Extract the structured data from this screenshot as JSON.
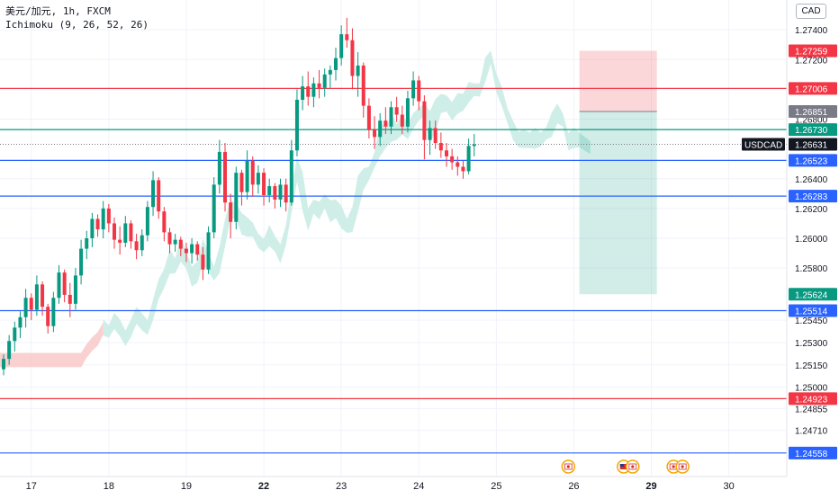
{
  "header": {
    "symbol_line": "美元/加元, 1h, FXCM",
    "indicator_line": "Ichimoku (9, 26, 52, 26)",
    "currency": "CAD"
  },
  "chart_data": {
    "type": "candlestick",
    "symbol": "USDCAD",
    "timeframe": "1h",
    "ylim": [
      1.244,
      1.276
    ],
    "y_ticks": [
      "1.27400",
      "1.27200",
      "1.26800",
      "1.26400",
      "1.26200",
      "1.26000",
      "1.25800",
      "1.25450",
      "1.25300",
      "1.25150",
      "1.25000",
      "1.24855",
      "1.24710"
    ],
    "x_ticks": [
      {
        "label": "17",
        "i": 5
      },
      {
        "label": "18",
        "i": 19
      },
      {
        "label": "19",
        "i": 33
      },
      {
        "label": "22",
        "i": 47,
        "bold": true
      },
      {
        "label": "23",
        "i": 61
      },
      {
        "label": "24",
        "i": 75
      },
      {
        "label": "25",
        "i": 89
      },
      {
        "label": "26",
        "i": 103
      },
      {
        "label": "29",
        "i": 117,
        "bold": true
      },
      {
        "label": "30",
        "i": 131
      }
    ],
    "candles": [
      [
        1.2512,
        1.2522,
        1.2508,
        1.2519
      ],
      [
        1.2519,
        1.2535,
        1.2515,
        1.2531
      ],
      [
        1.2531,
        1.2544,
        1.2524,
        1.254
      ],
      [
        1.254,
        1.2551,
        1.2533,
        1.2547
      ],
      [
        1.2547,
        1.2566,
        1.254,
        1.256
      ],
      [
        1.256,
        1.2563,
        1.2545,
        1.2552
      ],
      [
        1.2552,
        1.2575,
        1.2548,
        1.2569
      ],
      [
        1.2569,
        1.2571,
        1.2548,
        1.2554
      ],
      [
        1.2554,
        1.2556,
        1.2536,
        1.2541
      ],
      [
        1.2541,
        1.2564,
        1.2537,
        1.256
      ],
      [
        1.256,
        1.2582,
        1.2556,
        1.2577
      ],
      [
        1.2577,
        1.2579,
        1.2557,
        1.2562
      ],
      [
        1.2562,
        1.257,
        1.2547,
        1.2556
      ],
      [
        1.2556,
        1.258,
        1.2552,
        1.2575
      ],
      [
        1.2575,
        1.2599,
        1.2569,
        1.2593
      ],
      [
        1.2593,
        1.2605,
        1.2586,
        1.26
      ],
      [
        1.26,
        1.2617,
        1.2594,
        1.2613
      ],
      [
        1.2613,
        1.2616,
        1.2601,
        1.2606
      ],
      [
        1.2606,
        1.2625,
        1.26,
        1.262
      ],
      [
        1.262,
        1.2623,
        1.2604,
        1.261
      ],
      [
        1.261,
        1.2614,
        1.2593,
        1.2599
      ],
      [
        1.2599,
        1.2608,
        1.2589,
        1.2597
      ],
      [
        1.2597,
        1.2615,
        1.2594,
        1.261
      ],
      [
        1.261,
        1.2612,
        1.2593,
        1.2598
      ],
      [
        1.2598,
        1.2603,
        1.2586,
        1.2592
      ],
      [
        1.2592,
        1.2606,
        1.2588,
        1.2602
      ],
      [
        1.2602,
        1.2625,
        1.2598,
        1.2621
      ],
      [
        1.2621,
        1.2645,
        1.2615,
        1.2639
      ],
      [
        1.2639,
        1.2641,
        1.2613,
        1.2618
      ],
      [
        1.2618,
        1.2621,
        1.2598,
        1.2604
      ],
      [
        1.2604,
        1.2607,
        1.259,
        1.2596
      ],
      [
        1.2596,
        1.2603,
        1.2591,
        1.2599
      ],
      [
        1.2599,
        1.2601,
        1.2588,
        1.2593
      ],
      [
        1.2593,
        1.2597,
        1.2584,
        1.259
      ],
      [
        1.259,
        1.26,
        1.2583,
        1.2596
      ],
      [
        1.2596,
        1.2598,
        1.2585,
        1.2589
      ],
      [
        1.2589,
        1.2594,
        1.2572,
        1.2579
      ],
      [
        1.2579,
        1.2608,
        1.2576,
        1.2604
      ],
      [
        1.2604,
        1.2641,
        1.26,
        1.2636
      ],
      [
        1.2636,
        1.2666,
        1.263,
        1.2658
      ],
      [
        1.2658,
        1.2664,
        1.2618,
        1.2624
      ],
      [
        1.2624,
        1.263,
        1.26,
        1.2611
      ],
      [
        1.2611,
        1.2648,
        1.2606,
        1.2644
      ],
      [
        1.2644,
        1.2646,
        1.2622,
        1.2631
      ],
      [
        1.2631,
        1.2659,
        1.2626,
        1.2652
      ],
      [
        1.2652,
        1.2655,
        1.2628,
        1.2636
      ],
      [
        1.2636,
        1.2649,
        1.263,
        1.2644
      ],
      [
        1.2644,
        1.2647,
        1.2622,
        1.2629
      ],
      [
        1.2629,
        1.264,
        1.2624,
        1.2635
      ],
      [
        1.2635,
        1.2637,
        1.262,
        1.2626
      ],
      [
        1.2626,
        1.264,
        1.2621,
        1.2636
      ],
      [
        1.2636,
        1.264,
        1.2618,
        1.2624
      ],
      [
        1.2624,
        1.2666,
        1.2622,
        1.2659
      ],
      [
        1.2659,
        1.27,
        1.2655,
        1.2693
      ],
      [
        1.2693,
        1.2709,
        1.2686,
        1.2702
      ],
      [
        1.2702,
        1.2712,
        1.2689,
        1.2695
      ],
      [
        1.2695,
        1.2708,
        1.2688,
        1.2704
      ],
      [
        1.2704,
        1.2713,
        1.2694,
        1.2701
      ],
      [
        1.2701,
        1.2714,
        1.2695,
        1.271
      ],
      [
        1.271,
        1.2716,
        1.2701,
        1.2713
      ],
      [
        1.2713,
        1.2728,
        1.2706,
        1.2721
      ],
      [
        1.2721,
        1.2743,
        1.2716,
        1.2737
      ],
      [
        1.2737,
        1.2748,
        1.2728,
        1.2733
      ],
      [
        1.2733,
        1.2741,
        1.27,
        1.2709
      ],
      [
        1.2709,
        1.2725,
        1.2695,
        1.2716
      ],
      [
        1.2716,
        1.2718,
        1.2681,
        1.2689
      ],
      [
        1.2689,
        1.2694,
        1.2667,
        1.2673
      ],
      [
        1.2673,
        1.2682,
        1.266,
        1.2668
      ],
      [
        1.2668,
        1.2684,
        1.2662,
        1.2679
      ],
      [
        1.2679,
        1.2688,
        1.267,
        1.2675
      ],
      [
        1.2675,
        1.2692,
        1.267,
        1.2688
      ],
      [
        1.2688,
        1.2695,
        1.2678,
        1.2683
      ],
      [
        1.2683,
        1.2689,
        1.267,
        1.2675
      ],
      [
        1.2675,
        1.2699,
        1.2671,
        1.2694
      ],
      [
        1.2694,
        1.2712,
        1.2689,
        1.2706
      ],
      [
        1.2706,
        1.2709,
        1.2686,
        1.2692
      ],
      [
        1.2692,
        1.2696,
        1.2653,
        1.2666
      ],
      [
        1.2666,
        1.2679,
        1.2656,
        1.2674
      ],
      [
        1.2674,
        1.2679,
        1.266,
        1.2664
      ],
      [
        1.2664,
        1.2671,
        1.2654,
        1.2659
      ],
      [
        1.2659,
        1.2664,
        1.2648,
        1.2655
      ],
      [
        1.2655,
        1.266,
        1.2646,
        1.2651
      ],
      [
        1.2651,
        1.2655,
        1.2642,
        1.2648
      ],
      [
        1.2648,
        1.2652,
        1.264,
        1.2645
      ],
      [
        1.2645,
        1.2667,
        1.2643,
        1.2662
      ],
      [
        1.2662,
        1.267,
        1.2655,
        1.2663
      ]
    ],
    "cloud": {
      "bearish_color": "#f8c9c9",
      "bullish_color": "#c8ebe4",
      "bearish_span": {
        "start_i": -4,
        "end_i": 18
      },
      "bullish_span": {
        "start_i": 18,
        "end_i": 106
      }
    },
    "horizontal_lines": [
      {
        "price": 1.27006,
        "label": "1.27006",
        "color": "#f23645"
      },
      {
        "price": 1.2673,
        "label": "1.26730",
        "color": "#089981"
      },
      {
        "price": 1.26523,
        "label": "1.26523",
        "color": "#2962ff"
      },
      {
        "price": 1.26283,
        "label": "1.26283",
        "color": "#2962ff"
      },
      {
        "price": 1.25514,
        "label": "1.25514",
        "color": "#2962ff"
      },
      {
        "price": 1.24923,
        "label": "1.24923",
        "color": "#f23645"
      },
      {
        "price": 1.24558,
        "label": "1.24558",
        "color": "#2962ff"
      }
    ],
    "position": {
      "type": "short",
      "stop": 1.27259,
      "entry": 1.26851,
      "target": 1.25624,
      "stop_label": "1.27259",
      "entry_label": "1.26851",
      "target_label": "1.25624",
      "start_i": 104,
      "end_i": 118
    },
    "current_price": {
      "symbol": "USDCAD",
      "value": 1.26631,
      "label": "1.26631"
    },
    "event_markers": [
      {
        "i": 102,
        "flags": [
          "ca"
        ]
      },
      {
        "i": 112,
        "flags": [
          "us",
          "ca"
        ]
      },
      {
        "i": 121,
        "flags": [
          "ca",
          "ca"
        ]
      }
    ],
    "colors": {
      "up": "#089981",
      "down": "#f23645",
      "grid": "#f0f3fa",
      "axis_text": "#131722",
      "stop_zone": "#f23645",
      "target_zone": "#089981",
      "entry_badge": "#787b86",
      "price_badge": "#131722"
    }
  }
}
